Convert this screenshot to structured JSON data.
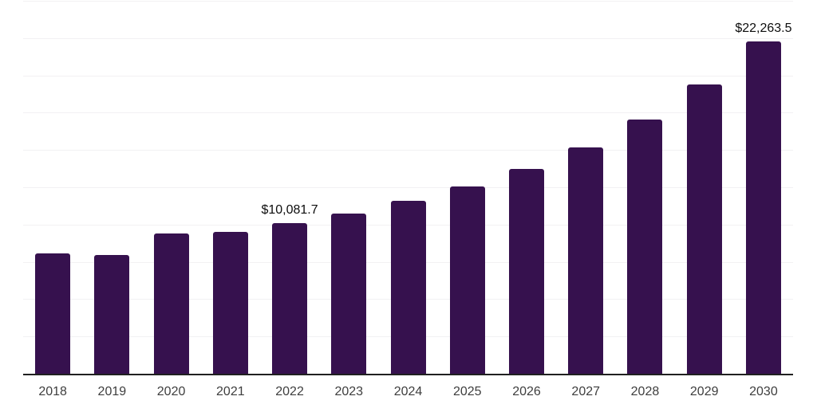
{
  "chart_data": {
    "type": "bar",
    "title": "",
    "xlabel": "",
    "ylabel": "",
    "categories": [
      "2018",
      "2019",
      "2020",
      "2021",
      "2022",
      "2023",
      "2024",
      "2025",
      "2026",
      "2027",
      "2028",
      "2029",
      "2030"
    ],
    "values": [
      8090,
      7980,
      9400,
      9500,
      10081.7,
      10730,
      11570,
      12530,
      13710,
      15180,
      17040,
      19390,
      22263.5
    ],
    "annotations": [
      {
        "x": "2022",
        "text": "$10,081.7"
      },
      {
        "x": "2030",
        "text": "$22,263.5"
      }
    ],
    "ylim": [
      0,
      25000
    ],
    "gridline_interval": 2500,
    "grid": true,
    "y_axis_labels_visible": false,
    "legend": "none",
    "colors": {
      "bar": "#36114E",
      "grid": "#f2f1f3",
      "axis": "#202020",
      "tick": "#3e3e3e",
      "value_label": "#0d0d0d",
      "background": "#ffffff"
    }
  }
}
